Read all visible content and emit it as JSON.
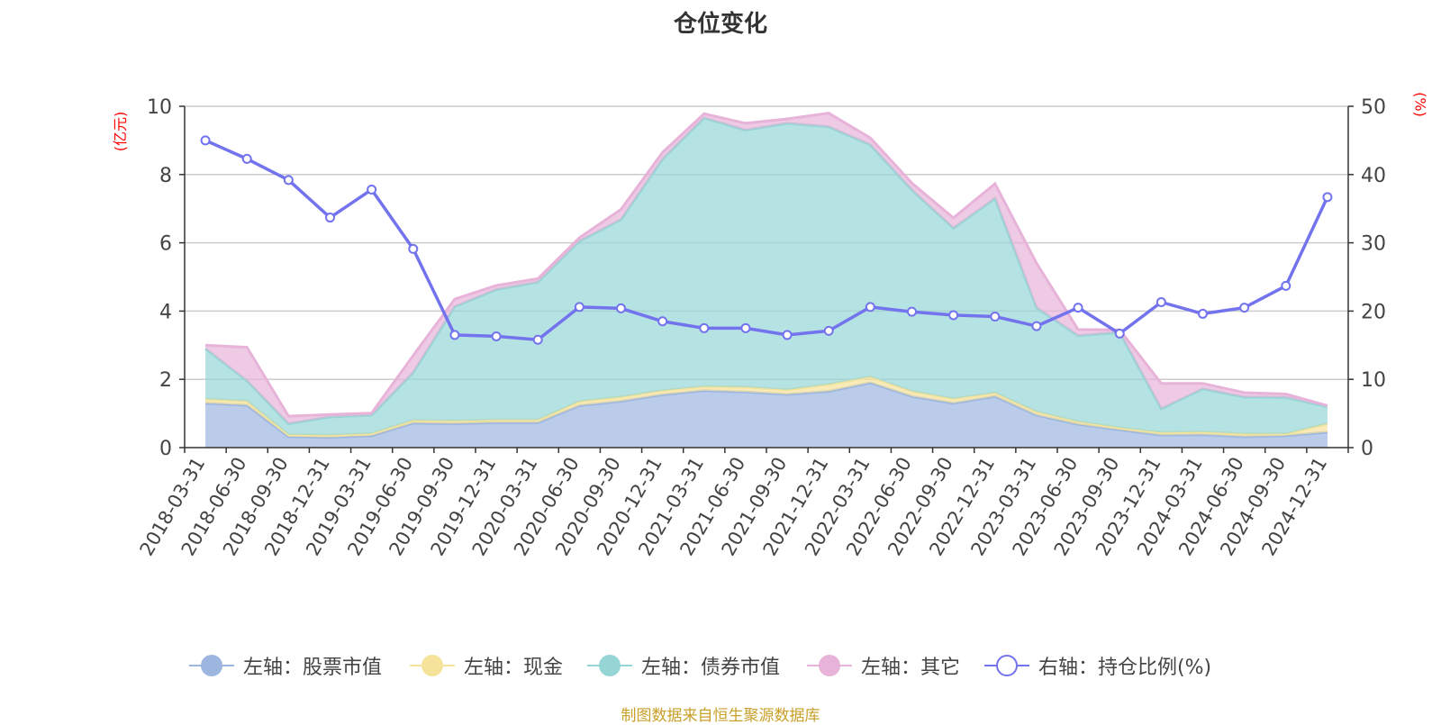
{
  "title": "仓位变化",
  "source_note": "制图数据来自恒生聚源数据库",
  "left_unit": "(亿元)",
  "right_unit": "(%)",
  "colors": {
    "stock": "#9cb6e0",
    "cash": "#f5e39b",
    "bond": "#95d5d5",
    "other": "#e7b3d9",
    "ratio": "#7373ee",
    "grid": "#cccccc",
    "axis": "#333333",
    "unit": "#ff0000",
    "source": "#c8a02a"
  },
  "legend": [
    {
      "key": "stock",
      "label": "左轴：股票市值",
      "icon": "filled-circle"
    },
    {
      "key": "cash",
      "label": "左轴：现金",
      "icon": "filled-circle"
    },
    {
      "key": "bond",
      "label": "左轴：债券市值",
      "icon": "filled-circle"
    },
    {
      "key": "other",
      "label": "左轴：其它",
      "icon": "filled-circle"
    },
    {
      "key": "ratio",
      "label": "右轴：持仓比例(%)",
      "icon": "hollow-circle"
    }
  ],
  "chart_data": {
    "type": "area",
    "stacked": true,
    "categories": [
      "2018-03-31",
      "2018-06-30",
      "2018-09-30",
      "2018-12-31",
      "2019-03-31",
      "2019-06-30",
      "2019-09-30",
      "2019-12-31",
      "2020-03-31",
      "2020-06-30",
      "2020-09-30",
      "2020-12-31",
      "2021-03-31",
      "2021-06-30",
      "2021-09-30",
      "2021-12-31",
      "2022-03-31",
      "2022-06-30",
      "2022-09-30",
      "2022-12-31",
      "2023-03-31",
      "2023-06-30",
      "2023-09-30",
      "2023-12-31",
      "2024-03-31",
      "2024-06-30",
      "2024-09-30",
      "2024-12-31"
    ],
    "y_left": {
      "min": 0,
      "max": 10,
      "ticks": [
        0,
        2,
        4,
        6,
        8,
        10
      ]
    },
    "y_right": {
      "min": 0,
      "max": 50,
      "ticks": [
        0,
        10,
        20,
        30,
        40,
        50
      ]
    },
    "grid": true,
    "legend_position": "bottom",
    "series": [
      {
        "name": "左轴：股票市值",
        "key": "stock",
        "axis": "left",
        "values": [
          1.3,
          1.24,
          0.32,
          0.3,
          0.35,
          0.72,
          0.7,
          0.73,
          0.73,
          1.23,
          1.36,
          1.55,
          1.67,
          1.63,
          1.56,
          1.65,
          1.9,
          1.5,
          1.3,
          1.5,
          0.95,
          0.68,
          0.52,
          0.37,
          0.38,
          0.32,
          0.35,
          0.45
        ]
      },
      {
        "name": "左轴：现金",
        "key": "cash",
        "axis": "left",
        "values": [
          0.12,
          0.12,
          0.06,
          0.06,
          0.06,
          0.08,
          0.08,
          0.08,
          0.08,
          0.12,
          0.12,
          0.12,
          0.12,
          0.14,
          0.13,
          0.2,
          0.17,
          0.15,
          0.13,
          0.1,
          0.1,
          0.08,
          0.06,
          0.07,
          0.08,
          0.08,
          0.05,
          0.25
        ]
      },
      {
        "name": "左轴：债券市值",
        "key": "bond",
        "axis": "left",
        "values": [
          1.48,
          0.6,
          0.32,
          0.54,
          0.54,
          1.4,
          3.35,
          3.82,
          4.04,
          4.7,
          5.2,
          6.78,
          7.87,
          7.53,
          7.81,
          7.55,
          6.8,
          5.9,
          5.0,
          5.7,
          3.05,
          2.52,
          2.8,
          0.7,
          1.26,
          1.08,
          1.07,
          0.5
        ]
      },
      {
        "name": "左轴：其它",
        "key": "other",
        "axis": "left",
        "values": [
          0.1,
          0.98,
          0.22,
          0.07,
          0.06,
          0.5,
          0.22,
          0.12,
          0.1,
          0.1,
          0.3,
          0.2,
          0.12,
          0.2,
          0.13,
          0.4,
          0.2,
          0.2,
          0.3,
          0.43,
          1.3,
          0.18,
          0.07,
          0.74,
          0.16,
          0.13,
          0.1,
          0.03
        ]
      },
      {
        "name": "右轴：持仓比例(%)",
        "key": "ratio",
        "axis": "right",
        "type": "line",
        "values": [
          45,
          42.3,
          39.2,
          33.7,
          37.8,
          29.1,
          16.5,
          16.3,
          15.8,
          20.6,
          20.4,
          18.5,
          17.5,
          17.5,
          16.5,
          17.1,
          20.6,
          19.9,
          19.4,
          19.2,
          17.8,
          20.5,
          16.7,
          21.3,
          19.6,
          20.5,
          23.7,
          36.7
        ]
      }
    ]
  }
}
